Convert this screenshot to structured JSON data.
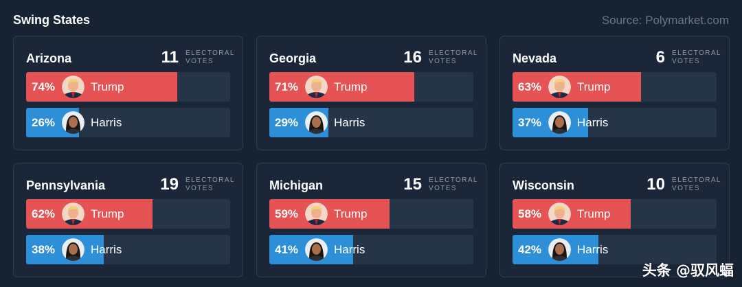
{
  "header": {
    "title": "Swing States",
    "source": "Source: Polymarket.com"
  },
  "ev_label_line1": "ELECTORAL",
  "ev_label_line2": "VOTES",
  "colors": {
    "trump": "#e55355",
    "harris": "#2e8fd9",
    "background": "#172232"
  },
  "states": [
    {
      "name": "Arizona",
      "ev": "11",
      "trump": {
        "label": "74%",
        "name": "Trump",
        "value": 74
      },
      "harris": {
        "label": "26%",
        "name": "Harris",
        "value": 26
      }
    },
    {
      "name": "Georgia",
      "ev": "16",
      "trump": {
        "label": "71%",
        "name": "Trump",
        "value": 71
      },
      "harris": {
        "label": "29%",
        "name": "Harris",
        "value": 29
      }
    },
    {
      "name": "Nevada",
      "ev": "6",
      "trump": {
        "label": "63%",
        "name": "Trump",
        "value": 63
      },
      "harris": {
        "label": "37%",
        "name": "Harris",
        "value": 37
      }
    },
    {
      "name": "Pennsylvania",
      "ev": "19",
      "trump": {
        "label": "62%",
        "name": "Trump",
        "value": 62
      },
      "harris": {
        "label": "38%",
        "name": "Harris",
        "value": 38
      }
    },
    {
      "name": "Michigan",
      "ev": "15",
      "trump": {
        "label": "59%",
        "name": "Trump",
        "value": 59
      },
      "harris": {
        "label": "41%",
        "name": "Harris",
        "value": 41
      }
    },
    {
      "name": "Wisconsin",
      "ev": "10",
      "trump": {
        "label": "58%",
        "name": "Trump",
        "value": 58
      },
      "harris": {
        "label": "42%",
        "name": "Harris",
        "value": 42
      }
    }
  ],
  "watermark": "头条 @驭风蝠"
}
